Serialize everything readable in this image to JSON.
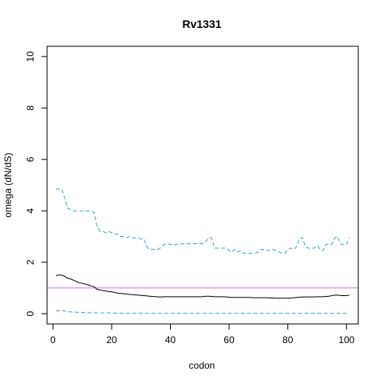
{
  "chart_data": {
    "type": "line",
    "title": "Rv1331",
    "xlabel": "codon",
    "ylabel": "omega (dN/dS)",
    "xlim": [
      -2.0,
      104.0
    ],
    "ylim": [
      -0.4,
      10.4
    ],
    "xticks": [
      0,
      20,
      40,
      60,
      80,
      100
    ],
    "yticks": [
      0,
      2,
      4,
      6,
      8,
      10
    ],
    "grid": false,
    "reference_line": {
      "y": 1.0,
      "color": "#C77CC7"
    },
    "series": [
      {
        "role": "upper",
        "color": "#29A9E0",
        "dash": "dashed",
        "x": [
          1,
          2,
          3,
          4,
          5,
          6,
          7,
          8,
          9,
          10,
          11,
          12,
          13,
          14,
          15,
          16,
          17,
          18,
          19,
          20,
          21,
          22,
          23,
          24,
          25,
          26,
          27,
          28,
          29,
          30,
          31,
          32,
          33,
          34,
          35,
          36,
          37,
          38,
          39,
          40,
          41,
          42,
          43,
          44,
          45,
          46,
          47,
          48,
          49,
          50,
          51,
          52,
          53,
          54,
          55,
          56,
          57,
          58,
          59,
          60,
          61,
          62,
          63,
          64,
          65,
          66,
          67,
          68,
          69,
          70,
          71,
          72,
          73,
          74,
          75,
          76,
          77,
          78,
          79,
          80,
          81,
          82,
          83,
          84,
          85,
          86,
          87,
          88,
          89,
          90,
          91,
          92,
          93,
          94,
          95,
          96,
          97,
          98,
          99,
          100,
          101
        ],
        "y": [
          4.85,
          4.85,
          4.85,
          4.5,
          4.1,
          4.05,
          4.0,
          4.0,
          4.0,
          4.0,
          4.0,
          4.0,
          4.0,
          3.95,
          3.4,
          3.2,
          3.2,
          3.15,
          3.2,
          3.15,
          3.1,
          3.1,
          3.0,
          3.0,
          2.95,
          3.0,
          2.95,
          2.95,
          2.95,
          2.9,
          2.9,
          2.6,
          2.5,
          2.5,
          2.5,
          2.5,
          2.6,
          2.7,
          2.7,
          2.7,
          2.65,
          2.7,
          2.7,
          2.72,
          2.72,
          2.72,
          2.72,
          2.72,
          2.72,
          2.72,
          2.72,
          2.8,
          2.95,
          2.95,
          2.55,
          2.55,
          2.55,
          2.55,
          2.55,
          2.45,
          2.4,
          2.5,
          2.4,
          2.45,
          2.35,
          2.35,
          2.35,
          2.35,
          2.35,
          2.4,
          2.5,
          2.5,
          2.45,
          2.5,
          2.5,
          2.45,
          2.4,
          2.35,
          2.35,
          2.5,
          2.55,
          2.5,
          2.6,
          2.95,
          2.95,
          2.6,
          2.55,
          2.55,
          2.55,
          2.65,
          2.5,
          2.45,
          2.7,
          2.7,
          2.7,
          2.95,
          3.0,
          2.7,
          2.7,
          2.7,
          2.95
        ]
      },
      {
        "role": "estimate",
        "color": "#000000",
        "dash": "solid",
        "x": [
          1,
          2,
          3,
          4,
          5,
          6,
          7,
          8,
          9,
          10,
          11,
          12,
          13,
          14,
          15,
          16,
          17,
          18,
          19,
          20,
          21,
          22,
          23,
          24,
          25,
          26,
          27,
          28,
          29,
          30,
          31,
          32,
          33,
          34,
          35,
          36,
          37,
          38,
          39,
          40,
          41,
          42,
          43,
          44,
          45,
          46,
          47,
          48,
          49,
          50,
          51,
          52,
          53,
          54,
          55,
          56,
          57,
          58,
          59,
          60,
          61,
          62,
          63,
          64,
          65,
          66,
          67,
          68,
          69,
          70,
          71,
          72,
          73,
          74,
          75,
          76,
          77,
          78,
          79,
          80,
          81,
          82,
          83,
          84,
          85,
          86,
          87,
          88,
          89,
          90,
          91,
          92,
          93,
          94,
          95,
          96,
          97,
          98,
          99,
          100,
          101
        ],
        "y": [
          1.48,
          1.5,
          1.5,
          1.45,
          1.38,
          1.35,
          1.3,
          1.25,
          1.2,
          1.18,
          1.15,
          1.12,
          1.08,
          1.05,
          0.95,
          0.92,
          0.9,
          0.88,
          0.86,
          0.85,
          0.83,
          0.8,
          0.79,
          0.78,
          0.76,
          0.75,
          0.74,
          0.73,
          0.72,
          0.71,
          0.7,
          0.69,
          0.68,
          0.67,
          0.66,
          0.65,
          0.65,
          0.66,
          0.66,
          0.66,
          0.66,
          0.66,
          0.66,
          0.66,
          0.66,
          0.66,
          0.66,
          0.66,
          0.66,
          0.66,
          0.66,
          0.68,
          0.68,
          0.67,
          0.66,
          0.66,
          0.66,
          0.66,
          0.65,
          0.64,
          0.63,
          0.63,
          0.63,
          0.63,
          0.63,
          0.63,
          0.63,
          0.62,
          0.62,
          0.62,
          0.62,
          0.62,
          0.62,
          0.61,
          0.61,
          0.6,
          0.6,
          0.6,
          0.6,
          0.6,
          0.61,
          0.62,
          0.63,
          0.64,
          0.65,
          0.65,
          0.65,
          0.65,
          0.65,
          0.66,
          0.66,
          0.66,
          0.67,
          0.68,
          0.7,
          0.72,
          0.72,
          0.7,
          0.7,
          0.7,
          0.72
        ]
      },
      {
        "role": "lower",
        "color": "#29A9E0",
        "dash": "dashed",
        "x": [
          1,
          2,
          3,
          4,
          5,
          6,
          7,
          8,
          9,
          10,
          11,
          12,
          13,
          14,
          15,
          16,
          17,
          18,
          19,
          20,
          21,
          22,
          23,
          24,
          25,
          26,
          27,
          28,
          29,
          30,
          31,
          32,
          33,
          34,
          35,
          36,
          37,
          38,
          39,
          40,
          41,
          42,
          43,
          44,
          45,
          46,
          47,
          48,
          49,
          50,
          51,
          52,
          53,
          54,
          55,
          56,
          57,
          58,
          59,
          60,
          61,
          62,
          63,
          64,
          65,
          66,
          67,
          68,
          69,
          70,
          71,
          72,
          73,
          74,
          75,
          76,
          77,
          78,
          79,
          80,
          81,
          82,
          83,
          84,
          85,
          86,
          87,
          88,
          89,
          90,
          91,
          92,
          93,
          94,
          95,
          96,
          97,
          98,
          99,
          100,
          101
        ],
        "y": [
          0.1,
          0.12,
          0.13,
          0.1,
          0.08,
          0.07,
          0.06,
          0.06,
          0.05,
          0.05,
          0.05,
          0.04,
          0.04,
          0.04,
          0.03,
          0.03,
          0.03,
          0.03,
          0.03,
          0.03,
          0.02,
          0.02,
          0.02,
          0.02,
          0.02,
          0.02,
          0.02,
          0.02,
          0.02,
          0.02,
          0.01,
          0.01,
          0.01,
          0.01,
          0.01,
          0.01,
          0.01,
          0.01,
          0.01,
          0.01,
          0.01,
          0.01,
          0.01,
          0.01,
          0.01,
          0.01,
          0.01,
          0.01,
          0.01,
          0.01,
          0.01,
          0.01,
          0.01,
          0.01,
          0.01,
          0.01,
          0.01,
          0.01,
          0.01,
          0.01,
          0.01,
          0.01,
          0.01,
          0.01,
          0.01,
          0.01,
          0.01,
          0.01,
          0.01,
          0.01,
          0.01,
          0.01,
          0.01,
          0.01,
          0.01,
          0.01,
          0.01,
          0.01,
          0.01,
          0.01,
          0.01,
          0.01,
          0.01,
          0.01,
          0.01,
          0.01,
          0.01,
          0.01,
          0.01,
          0.01,
          0.01,
          0.01,
          0.01,
          0.01,
          0.01,
          0.01,
          0.01,
          0.01,
          0.01,
          0.01,
          0.01
        ]
      }
    ]
  }
}
